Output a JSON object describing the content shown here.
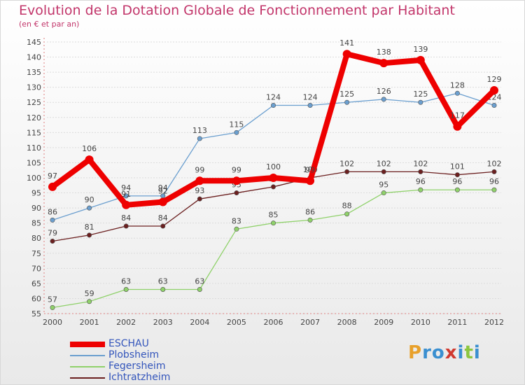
{
  "header": {
    "title": "Evolution de la Dotation Globale de Fonctionnement par Habitant",
    "subtitle": "(en € et par an)"
  },
  "brand": {
    "letters": [
      "P",
      "r",
      "o",
      "x",
      "i",
      "t",
      "i"
    ],
    "colors": [
      "#e8a02a",
      "#3a8fd0",
      "#3a8fd0",
      "#d0392f",
      "#3a8fd0",
      "#8cc63f",
      "#3a8fd0"
    ]
  },
  "chart_data": {
    "type": "line",
    "title": "Evolution de la Dotation Globale de Fonctionnement par Habitant",
    "subtitle": "(en € et par an)",
    "xlabel": "",
    "ylabel": "",
    "ylim": [
      55,
      145
    ],
    "yticks": [
      55,
      60,
      65,
      70,
      75,
      80,
      85,
      90,
      95,
      100,
      105,
      110,
      115,
      120,
      125,
      130,
      135,
      140,
      145
    ],
    "grid": true,
    "x": [
      "2000",
      "2001",
      "2002",
      "2003",
      "2004",
      "2005",
      "2006",
      "2007",
      "2008",
      "2009",
      "2010",
      "2011",
      "2012"
    ],
    "series": [
      {
        "name": "ESCHAU",
        "color": "#ee0000",
        "values": [
          97,
          106,
          91,
          92,
          99,
          99,
          100,
          99,
          141,
          138,
          139,
          117,
          129
        ]
      },
      {
        "name": "Plobsheim",
        "color": "#6b9fcf",
        "values": [
          86,
          90,
          94,
          94,
          113,
          115,
          124,
          124,
          125,
          126,
          125,
          128,
          124
        ]
      },
      {
        "name": "Fegersheim",
        "color": "#8fd16a",
        "values": [
          57,
          59,
          63,
          63,
          63,
          83,
          85,
          86,
          88,
          95,
          96,
          96,
          96
        ]
      },
      {
        "name": "Ichtratzheim",
        "color": "#6b1f1f",
        "values": [
          79,
          81,
          84,
          84,
          93,
          95,
          97,
          100,
          102,
          102,
          102,
          101,
          102
        ]
      }
    ]
  }
}
